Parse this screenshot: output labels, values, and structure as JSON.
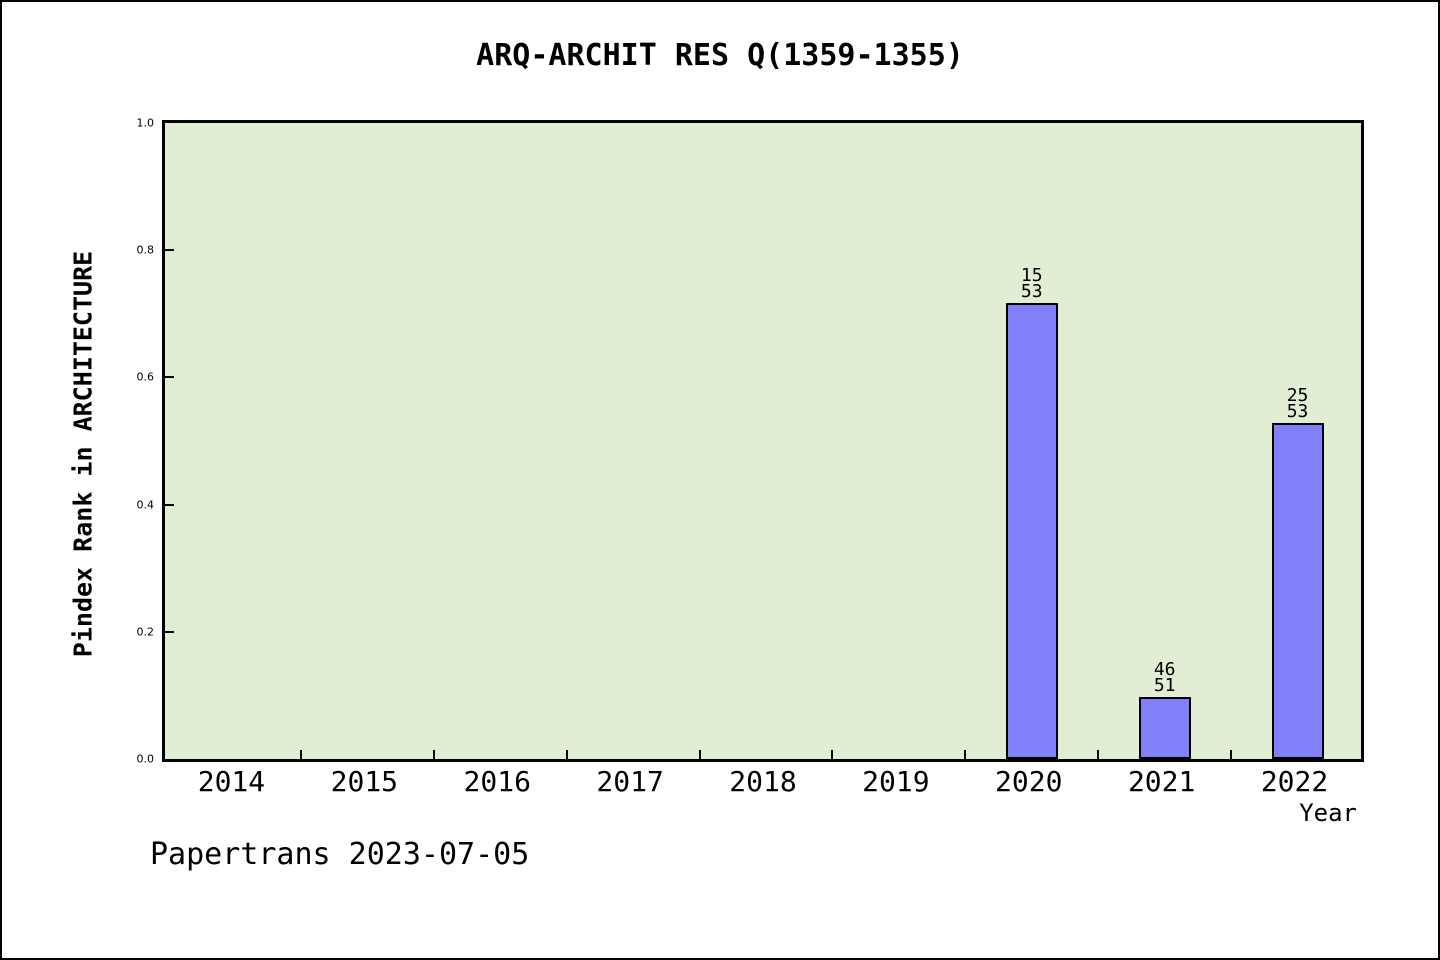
{
  "page": {
    "footer": "Papertrans 2023-07-05"
  },
  "chart_data": {
    "type": "bar",
    "title": "ARQ-ARCHIT RES Q(1359-1355)",
    "xlabel": "Year",
    "ylabel": "Pindex Rank in ARCHITECTURE",
    "categories": [
      "2014",
      "2015",
      "2016",
      "2017",
      "2018",
      "2019",
      "2020",
      "2021",
      "2022"
    ],
    "values": [
      null,
      null,
      null,
      null,
      null,
      null,
      0.717,
      0.098,
      0.528
    ],
    "bar_labels": [
      null,
      null,
      null,
      null,
      null,
      null,
      [
        "15",
        "53"
      ],
      [
        "46",
        "51"
      ],
      [
        "25",
        "53"
      ]
    ],
    "ylim": [
      0.0,
      1.0
    ],
    "yticks": [
      0.0,
      0.2,
      0.4,
      0.6,
      0.8,
      1.0
    ],
    "ytick_labels": [
      "0.0",
      "0.2",
      "0.4",
      "0.6",
      "0.8",
      "1.0"
    ],
    "grid": false,
    "legend": null,
    "colors": {
      "bar_fill": "#8080f8",
      "bar_edge": "#000000",
      "plot_bg": "#e1eed3",
      "figure_bg": "#ffffff",
      "text": "#000000"
    }
  }
}
